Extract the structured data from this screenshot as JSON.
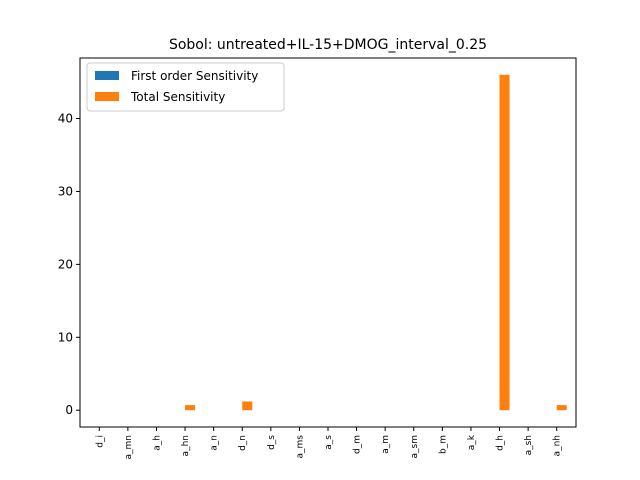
{
  "chart_data": {
    "type": "bar",
    "title": "Sobol: untreated+IL-15+DMOG_interval_0.25",
    "xlabel": "",
    "ylabel": "",
    "categories": [
      "d_i",
      "a_mn",
      "a_h",
      "a_hn",
      "a_n",
      "d_n",
      "d_s",
      "a_ms",
      "a_s",
      "d_m",
      "a_m",
      "a_sm",
      "b_m",
      "a_k",
      "d_h",
      "a_sh",
      "a_nh"
    ],
    "ylim": [
      -2.3,
      48.3
    ],
    "yticks": [
      0,
      10,
      20,
      30,
      40
    ],
    "grid": false,
    "legend_position": "top-left",
    "series": [
      {
        "name": "First order Sensitivity",
        "color": "#1f77b4",
        "values": [
          0,
          0,
          0,
          0,
          0,
          0,
          0,
          0,
          0,
          0,
          0,
          0,
          0,
          0,
          0,
          0,
          0
        ]
      },
      {
        "name": "Total Sensitivity",
        "color": "#ff7f0e",
        "values": [
          0,
          0,
          0,
          0.7,
          0,
          1.2,
          0,
          0,
          0,
          0,
          0,
          0,
          0,
          0,
          46.0,
          0,
          0.7
        ]
      }
    ]
  }
}
